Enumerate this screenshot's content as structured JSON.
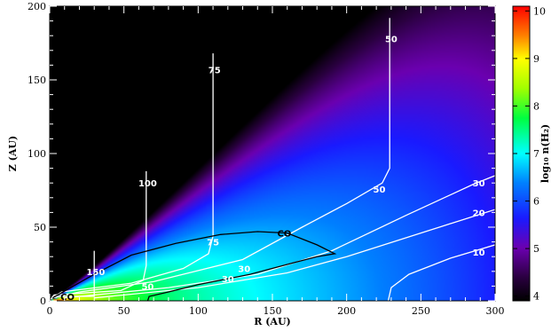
{
  "chart_data": {
    "type": "heatmap",
    "xlabel": "R (AU)",
    "ylabel": "Z (AU)",
    "xlim": [
      0,
      300
    ],
    "ylim": [
      0,
      200
    ],
    "x_ticks": [
      "0",
      "50",
      "100",
      "150",
      "200",
      "250",
      "300"
    ],
    "y_ticks": [
      "0",
      "50",
      "100",
      "150",
      "200"
    ],
    "colorbar": {
      "label": "log₁₀ n(H₂)",
      "range": [
        3.9,
        10.1
      ],
      "ticks": [
        "4",
        "5",
        "6",
        "7",
        "8",
        "9",
        "10"
      ],
      "colormap": "rainbow (black-purple-blue-cyan-green-yellow-red)"
    },
    "contours": [
      {
        "label": "150",
        "color": "#ffffff",
        "points": [
          [
            1,
            1
          ],
          [
            2,
            3
          ],
          [
            30,
            3
          ],
          [
            30,
            34
          ]
        ]
      },
      {
        "label": "100",
        "color": "#ffffff",
        "points": [
          [
            1,
            1
          ],
          [
            3,
            4
          ],
          [
            48,
            7
          ],
          [
            63,
            14
          ],
          [
            65,
            24
          ],
          [
            65,
            88
          ]
        ]
      },
      {
        "label": "75",
        "color": "#ffffff",
        "points": [
          [
            2,
            2
          ],
          [
            8,
            6
          ],
          [
            55,
            12
          ],
          [
            90,
            22
          ],
          [
            107,
            32
          ],
          [
            110,
            44
          ],
          [
            110,
            168
          ]
        ]
      },
      {
        "label": "50",
        "color": "#ffffff",
        "points": [
          [
            2,
            2
          ],
          [
            20,
            6
          ],
          [
            70,
            13
          ],
          [
            130,
            28
          ],
          [
            170,
            50
          ],
          [
            200,
            66
          ],
          [
            224,
            80
          ],
          [
            229,
            90
          ],
          [
            229,
            192
          ]
        ]
      },
      {
        "label": "30",
        "color": "#ffffff",
        "points": [
          [
            10,
            2
          ],
          [
            80,
            9
          ],
          [
            140,
            18
          ],
          [
            190,
            34
          ],
          [
            240,
            58
          ],
          [
            285,
            79
          ],
          [
            300,
            85
          ]
        ]
      },
      {
        "label": "20",
        "color": "#ffffff",
        "points": [
          [
            30,
            2
          ],
          [
            100,
            9
          ],
          [
            160,
            19
          ],
          [
            200,
            30
          ],
          [
            250,
            46
          ],
          [
            300,
            62
          ]
        ]
      },
      {
        "label": "10",
        "color": "#ffffff",
        "points": [
          [
            228,
            0
          ],
          [
            230,
            9
          ],
          [
            242,
            18
          ],
          [
            270,
            29
          ],
          [
            300,
            38
          ]
        ]
      },
      {
        "label": "CO",
        "color": "#000000",
        "points": [
          [
            2,
            2
          ],
          [
            30,
            18
          ],
          [
            55,
            31
          ],
          [
            85,
            39
          ],
          [
            115,
            45
          ],
          [
            140,
            47
          ],
          [
            160,
            46
          ],
          [
            180,
            38
          ],
          [
            192,
            32
          ],
          [
            180,
            30
          ],
          [
            165,
            26
          ],
          [
            135,
            18
          ],
          [
            100,
            11
          ],
          [
            80,
            6
          ],
          [
            67,
            3
          ],
          [
            66,
            0
          ]
        ]
      }
    ],
    "contour_labels": [
      {
        "text": "150",
        "x": 31,
        "y": 20
      },
      {
        "text": "100",
        "x": 66,
        "y": 80
      },
      {
        "text": "75",
        "x": 111,
        "y": 157
      },
      {
        "text": "50",
        "x": 230,
        "y": 178
      },
      {
        "text": "75",
        "x": 110,
        "y": 40
      },
      {
        "text": "50",
        "x": 66,
        "y": 10
      },
      {
        "text": "50",
        "x": 222,
        "y": 76
      },
      {
        "text": "30",
        "x": 131,
        "y": 22
      },
      {
        "text": "30",
        "x": 120,
        "y": 15
      },
      {
        "text": "30",
        "x": 289,
        "y": 80
      },
      {
        "text": "20",
        "x": 289,
        "y": 60
      },
      {
        "text": "10",
        "x": 289,
        "y": 33
      },
      {
        "text": "CO",
        "x": 158,
        "y": 46
      },
      {
        "text": "CO",
        "x": 12,
        "y": 3
      }
    ]
  }
}
